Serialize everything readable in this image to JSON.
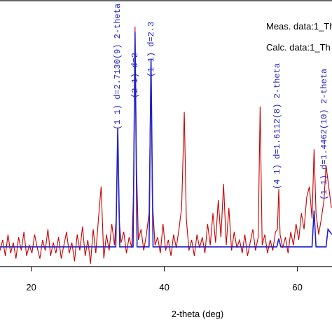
{
  "chart_data": {
    "type": "line",
    "x_label": "2-theta (deg)",
    "xlim": [
      15.3,
      65.2
    ],
    "ylim": [
      0,
      100
    ],
    "xticks": [
      20,
      40,
      60
    ],
    "series": [
      {
        "name": "Meas. data:1_Th",
        "color": "#c80000",
        "x": [
          15.3,
          15.7,
          16.1,
          16.5,
          16.9,
          17.3,
          17.7,
          18.1,
          18.5,
          18.9,
          19.3,
          19.7,
          20.1,
          20.5,
          20.9,
          21.3,
          21.7,
          22.1,
          22.5,
          22.9,
          23.3,
          23.7,
          24.1,
          24.5,
          24.9,
          25.3,
          25.7,
          26.1,
          26.5,
          26.9,
          27.3,
          27.7,
          28.1,
          28.5,
          28.9,
          29.3,
          29.7,
          30.1,
          30.5,
          30.9,
          31.3,
          31.7,
          32.1,
          32.5,
          32.8,
          33.0,
          33.2,
          33.5,
          33.9,
          34.3,
          34.7,
          35.1,
          35.4,
          35.6,
          35.8,
          36.1,
          36.5,
          36.9,
          37.3,
          37.7,
          38.0,
          38.2,
          38.6,
          39.0,
          39.4,
          39.8,
          40.2,
          40.6,
          41.0,
          41.4,
          41.8,
          42.2,
          42.6,
          43.0,
          43.3,
          43.7,
          44.1,
          44.5,
          44.9,
          45.3,
          45.7,
          46.1,
          46.5,
          46.9,
          47.3,
          47.7,
          48.1,
          48.5,
          48.9,
          49.3,
          49.7,
          50.1,
          50.5,
          50.9,
          51.3,
          51.7,
          52.1,
          52.5,
          52.9,
          53.3,
          53.7,
          54.1,
          54.4,
          54.7,
          55.1,
          55.5,
          55.9,
          56.3,
          56.7,
          57.0,
          57.2,
          57.4,
          57.8,
          58.2,
          58.6,
          59.0,
          59.4,
          59.8,
          60.2,
          60.6,
          61.0,
          61.4,
          61.8,
          62.2,
          62.5,
          62.8,
          63.2,
          63.6,
          64.0,
          64.3,
          64.7,
          65.1
        ],
        "values": [
          6,
          10,
          4,
          12,
          5,
          9,
          3,
          11,
          6,
          13,
          4,
          8,
          5,
          12,
          7,
          3,
          10,
          6,
          14,
          4,
          9,
          5,
          11,
          3,
          8,
          13,
          5,
          9,
          2,
          12,
          6,
          15,
          4,
          10,
          1,
          14,
          5,
          18,
          30,
          3,
          12,
          6,
          16,
          8,
          20,
          52,
          18,
          9,
          13,
          5,
          11,
          7,
          30,
          90,
          40,
          10,
          14,
          6,
          12,
          20,
          78,
          25,
          8,
          11,
          5,
          16,
          6,
          10,
          4,
          12,
          7,
          14,
          22,
          58,
          18,
          6,
          10,
          4,
          12,
          7,
          11,
          5,
          16,
          8,
          20,
          9,
          25,
          11,
          31,
          8,
          22,
          6,
          13,
          7,
          10,
          5,
          12,
          4,
          9,
          14,
          6,
          11,
          60,
          8,
          12,
          5,
          10,
          6,
          13,
          14,
          29,
          12,
          7,
          11,
          5,
          13,
          8,
          16,
          10,
          20,
          14,
          26,
          30,
          18,
          44,
          20,
          12,
          18,
          25,
          38,
          30,
          22
        ]
      },
      {
        "name": "Calc. data:1_Th",
        "color": "#2020c8",
        "x": [
          15.3,
          32.7,
          33.0,
          33.3,
          35.3,
          35.6,
          35.9,
          37.7,
          38.0,
          38.3,
          56.9,
          57.2,
          57.5,
          62.2,
          62.5,
          62.8,
          64.3,
          64.6,
          65.2
        ],
        "values": [
          7.4,
          7.4,
          52,
          7.4,
          7.4,
          88,
          7.4,
          7.4,
          78,
          7.4,
          7.4,
          10.5,
          7.4,
          7.4,
          21,
          7.4,
          7.4,
          14,
          12
        ]
      }
    ],
    "annotations": [
      "(1 1)  d=2.7130(9)  2-theta",
      "(2 1)  d=2",
      "(1 1)  d=2.3",
      "(4 1)  d=1.6112(8)  2-theta",
      "(1 1)  d=1.4462(10)  2-theta"
    ]
  }
}
